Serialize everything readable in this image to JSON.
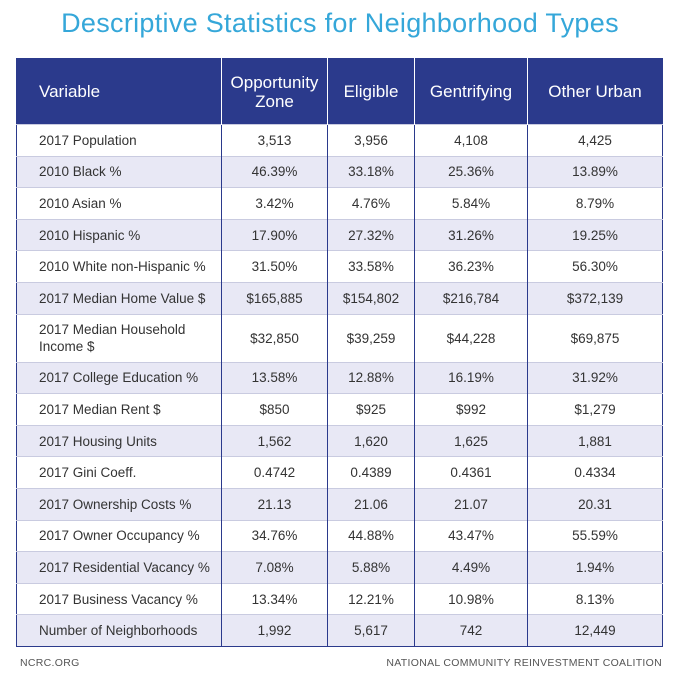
{
  "title": "Descriptive Statistics for Neighborhood Types",
  "table": {
    "headers": [
      "Variable",
      "Opportunity Zone",
      "Eligible",
      "Gentrifying",
      "Other Urban"
    ],
    "rows": [
      [
        "2017 Population",
        "3,513",
        "3,956",
        "4,108",
        "4,425"
      ],
      [
        "2010 Black %",
        "46.39%",
        "33.18%",
        "25.36%",
        "13.89%"
      ],
      [
        "2010 Asian %",
        "3.42%",
        "4.76%",
        "5.84%",
        "8.79%"
      ],
      [
        "2010 Hispanic %",
        "17.90%",
        "27.32%",
        "31.26%",
        "19.25%"
      ],
      [
        "2010 White non-Hispanic %",
        "31.50%",
        "33.58%",
        "36.23%",
        "56.30%"
      ],
      [
        "2017 Median Home Value $",
        "$165,885",
        "$154,802",
        "$216,784",
        "$372,139"
      ],
      [
        "2017 Median Household Income $",
        "$32,850",
        "$39,259",
        "$44,228",
        "$69,875"
      ],
      [
        "2017 College Education %",
        "13.58%",
        "12.88%",
        "16.19%",
        "31.92%"
      ],
      [
        "2017 Median Rent $",
        "$850",
        "$925",
        "$992",
        "$1,279"
      ],
      [
        "2017 Housing Units",
        "1,562",
        "1,620",
        "1,625",
        "1,881"
      ],
      [
        "2017 Gini Coeff.",
        "0.4742",
        "0.4389",
        "0.4361",
        "0.4334"
      ],
      [
        "2017 Ownership Costs %",
        "21.13",
        "21.06",
        "21.07",
        "20.31"
      ],
      [
        "2017 Owner Occupancy %",
        "34.76%",
        "44.88%",
        "43.47%",
        "55.59%"
      ],
      [
        "2017 Residential Vacancy %",
        "7.08%",
        "5.88%",
        "4.49%",
        "1.94%"
      ],
      [
        "2017 Business Vacancy %",
        "13.34%",
        "12.21%",
        "10.98%",
        "8.13%"
      ],
      [
        "Number of Neighborhoods",
        "1,992",
        "5,617",
        "742",
        "12,449"
      ]
    ]
  },
  "footer": {
    "left": "NCRC.ORG",
    "right": "NATIONAL COMMUNITY REINVESTMENT COALITION"
  },
  "colors": {
    "title": "#35a7d9",
    "header_bg": "#2b3a8c",
    "stripe": "#e8e8f5"
  }
}
